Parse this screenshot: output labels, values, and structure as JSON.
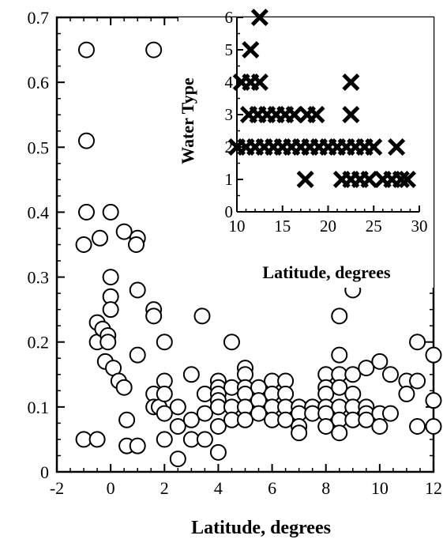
{
  "chart_data": [
    {
      "type": "scatter",
      "title": "",
      "xlabel": "Latitude, degrees",
      "ylabel": "",
      "xlim": [
        -2,
        12
      ],
      "ylim": [
        0,
        0.7
      ],
      "xticks": [
        "-2",
        "0",
        "2",
        "4",
        "6",
        "8",
        "10",
        "12"
      ],
      "yticks": [
        "0",
        "0.1",
        "0.2",
        "0.3",
        "0.4",
        "0.5",
        "0.6",
        "0.7"
      ],
      "marker": "open-circle",
      "grid": false,
      "points": [
        [
          -0.9,
          0.65
        ],
        [
          -0.9,
          0.51
        ],
        [
          -0.9,
          0.4
        ],
        [
          -1.0,
          0.35
        ],
        [
          -1.0,
          0.05
        ],
        [
          -0.5,
          0.05
        ],
        [
          -0.4,
          0.36
        ],
        [
          -0.5,
          0.23
        ],
        [
          -0.5,
          0.2
        ],
        [
          -0.3,
          0.22
        ],
        [
          -0.2,
          0.17
        ],
        [
          0.0,
          0.4
        ],
        [
          0.0,
          0.3
        ],
        [
          0.0,
          0.27
        ],
        [
          0.0,
          0.25
        ],
        [
          -0.1,
          0.21
        ],
        [
          -0.1,
          0.2
        ],
        [
          0.1,
          0.16
        ],
        [
          0.3,
          0.14
        ],
        [
          0.5,
          0.37
        ],
        [
          0.5,
          0.13
        ],
        [
          0.6,
          0.08
        ],
        [
          0.6,
          0.04
        ],
        [
          1.0,
          0.36
        ],
        [
          0.95,
          0.35
        ],
        [
          1.0,
          0.28
        ],
        [
          1.0,
          0.18
        ],
        [
          1.0,
          0.04
        ],
        [
          1.6,
          0.65
        ],
        [
          1.6,
          0.25
        ],
        [
          1.6,
          0.24
        ],
        [
          1.6,
          0.12
        ],
        [
          1.6,
          0.1
        ],
        [
          1.8,
          0.1
        ],
        [
          2.0,
          0.2
        ],
        [
          2.0,
          0.14
        ],
        [
          2.0,
          0.12
        ],
        [
          2.0,
          0.09
        ],
        [
          2.0,
          0.05
        ],
        [
          2.5,
          0.1
        ],
        [
          2.5,
          0.07
        ],
        [
          2.5,
          0.02
        ],
        [
          3.0,
          0.15
        ],
        [
          3.0,
          0.08
        ],
        [
          3.0,
          0.05
        ],
        [
          3.4,
          0.24
        ],
        [
          3.5,
          0.12
        ],
        [
          3.5,
          0.09
        ],
        [
          3.5,
          0.05
        ],
        [
          4.0,
          0.14
        ],
        [
          4.0,
          0.13
        ],
        [
          4.0,
          0.12
        ],
        [
          4.0,
          0.11
        ],
        [
          4.0,
          0.1
        ],
        [
          4.0,
          0.07
        ],
        [
          4.0,
          0.03
        ],
        [
          4.5,
          0.2
        ],
        [
          4.5,
          0.13
        ],
        [
          4.5,
          0.1
        ],
        [
          4.5,
          0.08
        ],
        [
          5.0,
          0.16
        ],
        [
          5.0,
          0.15
        ],
        [
          5.0,
          0.13
        ],
        [
          5.0,
          0.12
        ],
        [
          5.0,
          0.1
        ],
        [
          5.0,
          0.08
        ],
        [
          5.5,
          0.13
        ],
        [
          5.5,
          0.11
        ],
        [
          5.5,
          0.09
        ],
        [
          6.0,
          0.14
        ],
        [
          6.0,
          0.12
        ],
        [
          6.0,
          0.1
        ],
        [
          6.0,
          0.08
        ],
        [
          6.5,
          0.14
        ],
        [
          6.5,
          0.12
        ],
        [
          6.5,
          0.1
        ],
        [
          6.5,
          0.08
        ],
        [
          7.0,
          0.1
        ],
        [
          7.0,
          0.09
        ],
        [
          7.0,
          0.07
        ],
        [
          7.0,
          0.06
        ],
        [
          7.5,
          0.1
        ],
        [
          7.5,
          0.09
        ],
        [
          8.0,
          0.15
        ],
        [
          8.0,
          0.13
        ],
        [
          8.0,
          0.12
        ],
        [
          8.0,
          0.1
        ],
        [
          8.0,
          0.09
        ],
        [
          8.0,
          0.07
        ],
        [
          8.5,
          0.24
        ],
        [
          8.5,
          0.18
        ],
        [
          8.5,
          0.15
        ],
        [
          8.5,
          0.13
        ],
        [
          8.5,
          0.1
        ],
        [
          8.5,
          0.08
        ],
        [
          8.5,
          0.06
        ],
        [
          9.0,
          0.28
        ],
        [
          9.0,
          0.15
        ],
        [
          9.0,
          0.12
        ],
        [
          9.0,
          0.1
        ],
        [
          9.0,
          0.08
        ],
        [
          9.5,
          0.16
        ],
        [
          9.5,
          0.1
        ],
        [
          9.5,
          0.09
        ],
        [
          9.5,
          0.08
        ],
        [
          10.0,
          0.17
        ],
        [
          10.0,
          0.09
        ],
        [
          10.0,
          0.07
        ],
        [
          10.4,
          0.15
        ],
        [
          10.4,
          0.09
        ],
        [
          11.0,
          0.14
        ],
        [
          11.0,
          0.12
        ],
        [
          11.4,
          0.2
        ],
        [
          11.4,
          0.14
        ],
        [
          11.4,
          0.07
        ],
        [
          12.0,
          0.18
        ],
        [
          12.0,
          0.11
        ],
        [
          12.0,
          0.07
        ]
      ]
    },
    {
      "type": "scatter",
      "title": "",
      "xlabel": "Latitude, degrees",
      "ylabel": "Water Type",
      "xlim": [
        10,
        30
      ],
      "ylim": [
        0,
        6
      ],
      "xticks": [
        "10",
        "15",
        "20",
        "25",
        "30"
      ],
      "yticks": [
        "0",
        "1",
        "2",
        "3",
        "4",
        "5",
        "6"
      ],
      "marker": "x",
      "grid": false,
      "points": [
        [
          12.5,
          6
        ],
        [
          11.5,
          5
        ],
        [
          10.5,
          4
        ],
        [
          11.5,
          4
        ],
        [
          12.5,
          4
        ],
        [
          22.5,
          4
        ],
        [
          11.3,
          3
        ],
        [
          12.3,
          3
        ],
        [
          13.3,
          3
        ],
        [
          14.3,
          3
        ],
        [
          15.3,
          3
        ],
        [
          16.3,
          3
        ],
        [
          17.7,
          3
        ],
        [
          18.7,
          3
        ],
        [
          22.5,
          3
        ],
        [
          10,
          2
        ],
        [
          11,
          2
        ],
        [
          12,
          2
        ],
        [
          13,
          2
        ],
        [
          14,
          2
        ],
        [
          15,
          2
        ],
        [
          16,
          2
        ],
        [
          17,
          2
        ],
        [
          18,
          2
        ],
        [
          19,
          2
        ],
        [
          20,
          2
        ],
        [
          21,
          2
        ],
        [
          22,
          2
        ],
        [
          23,
          2
        ],
        [
          24,
          2
        ],
        [
          25,
          2
        ],
        [
          27.5,
          2
        ],
        [
          17.5,
          1
        ],
        [
          21.5,
          1
        ],
        [
          22.5,
          1
        ],
        [
          23.5,
          1
        ],
        [
          24.5,
          1
        ],
        [
          26,
          1
        ],
        [
          27,
          1
        ],
        [
          28,
          1
        ],
        [
          28.7,
          1
        ]
      ]
    }
  ]
}
